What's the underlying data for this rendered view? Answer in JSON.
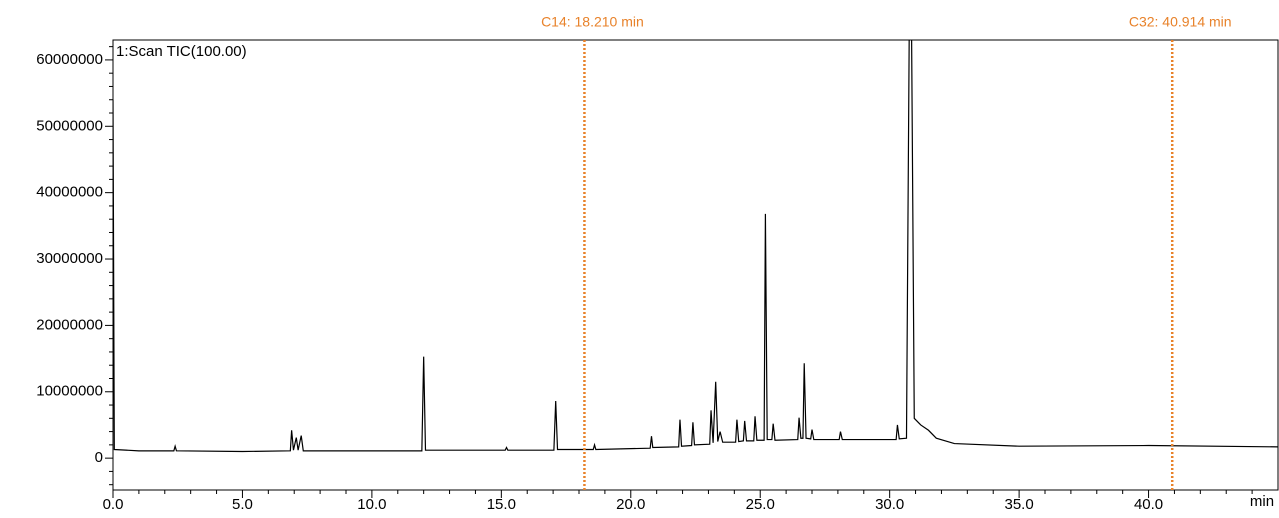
{
  "chart_data": {
    "type": "line",
    "x_label": "min",
    "xlim": [
      0,
      45
    ],
    "ylim": [
      -4800000,
      63000000
    ],
    "xticks": [
      {
        "value": 0,
        "label": "0.0"
      },
      {
        "value": 5,
        "label": "5.0"
      },
      {
        "value": 10,
        "label": "10.0"
      },
      {
        "value": 15,
        "label": "15.0"
      },
      {
        "value": 20,
        "label": "20.0"
      },
      {
        "value": 25,
        "label": "25.0"
      },
      {
        "value": 30,
        "label": "30.0"
      },
      {
        "value": 35,
        "label": "35.0"
      },
      {
        "value": 40,
        "label": "40.0"
      }
    ],
    "xminorticks": [
      1,
      2,
      3,
      4,
      6,
      7,
      8,
      9,
      11,
      12,
      13,
      14,
      16,
      17,
      18,
      19,
      21,
      22,
      23,
      24,
      26,
      27,
      28,
      29,
      31,
      32,
      33,
      34,
      36,
      37,
      38,
      39,
      41,
      42,
      43,
      44
    ],
    "yticks": [
      0,
      10000000,
      20000000,
      30000000,
      40000000,
      50000000,
      60000000
    ],
    "yminorticks": [
      -4000000,
      -2000000,
      2000000,
      4000000,
      6000000,
      8000000,
      12000000,
      14000000,
      16000000,
      18000000,
      22000000,
      24000000,
      26000000,
      28000000,
      32000000,
      34000000,
      36000000,
      38000000,
      42000000,
      44000000,
      46000000,
      48000000,
      52000000,
      54000000,
      56000000,
      58000000,
      62000000
    ],
    "markers": [
      {
        "x": 18.21,
        "label": "C14: 18.210 min",
        "color": "#e8822a"
      },
      {
        "x": 40.914,
        "label": "C32: 40.914 min",
        "color": "#e8822a"
      }
    ],
    "series": [
      {
        "name": "1:Scan TIC(100.00)",
        "color": "#000000",
        "x": [
          0,
          0.05,
          1,
          2.35,
          2.4,
          2.45,
          5,
          6.85,
          6.9,
          6.97,
          7.08,
          7.15,
          7.27,
          7.35,
          9,
          11.93,
          12.0,
          12.07,
          15.15,
          15.2,
          15.25,
          17.03,
          17.1,
          17.17,
          18.55,
          18.6,
          18.65,
          20.75,
          20.8,
          20.85,
          21.85,
          21.9,
          21.96,
          22.35,
          22.4,
          22.46,
          23.05,
          23.1,
          23.18,
          23.28,
          23.36,
          23.45,
          23.55,
          24.05,
          24.1,
          24.17,
          24.35,
          24.4,
          24.47,
          24.75,
          24.8,
          24.87,
          25.15,
          25.2,
          25.27,
          25.45,
          25.5,
          25.57,
          26.45,
          26.5,
          26.57,
          26.65,
          26.7,
          26.77,
          26.95,
          27.0,
          27.07,
          28.05,
          28.1,
          28.17,
          30.25,
          30.3,
          30.37,
          30.65,
          30.8,
          30.95,
          31.2,
          31.5,
          31.8,
          32.5,
          35,
          40,
          45
        ],
        "values": [
          54000000,
          1300000,
          1100000,
          1100000,
          1800000,
          1100000,
          1000000,
          1100000,
          4200000,
          1200000,
          3100000,
          1200000,
          3400000,
          1100000,
          1100000,
          1100000,
          15300000,
          1200000,
          1200000,
          1600000,
          1200000,
          1200000,
          8600000,
          1300000,
          1300000,
          2000000,
          1300000,
          1500000,
          3300000,
          1600000,
          1700000,
          5800000,
          1800000,
          1900000,
          5400000,
          2000000,
          2100000,
          7200000,
          2300000,
          11500000,
          2500000,
          4000000,
          2400000,
          2400000,
          5800000,
          2500000,
          2600000,
          5600000,
          2600000,
          2600000,
          6300000,
          2700000,
          2700000,
          36800000,
          2800000,
          2800000,
          5200000,
          2700000,
          2800000,
          6100000,
          3000000,
          3000000,
          14300000,
          3000000,
          2900000,
          4300000,
          2800000,
          2800000,
          4000000,
          2800000,
          2800000,
          5000000,
          2900000,
          3000000,
          90000000,
          6000000,
          5000000,
          4200000,
          3000000,
          2200000,
          1800000,
          1900000,
          1700000
        ]
      }
    ]
  }
}
